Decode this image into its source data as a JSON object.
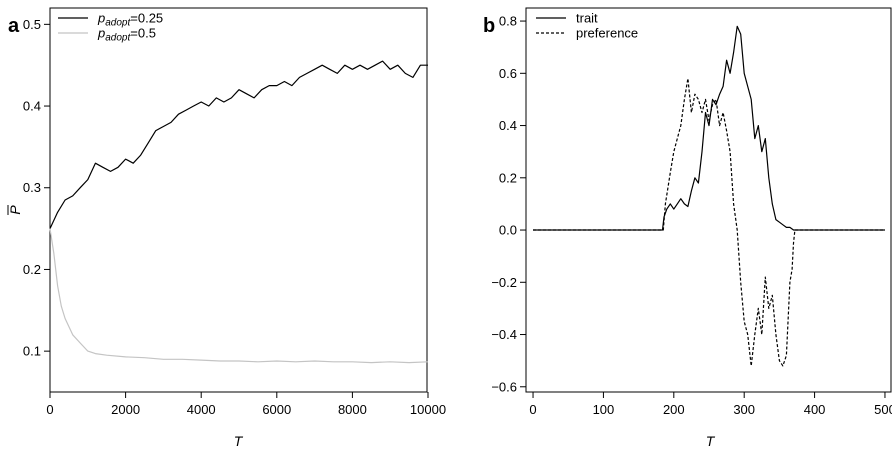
{
  "chart_data": [
    {
      "panel_label": "a",
      "type": "line",
      "xlabel": "T",
      "ylabel": "P",
      "xlim": [
        0,
        10000
      ],
      "ylim": [
        0.05,
        0.52
      ],
      "xticks": [
        0,
        2000,
        4000,
        6000,
        8000,
        10000
      ],
      "xtick_labels": [
        "0",
        "2000",
        "4000",
        "6000",
        "8000",
        "10000"
      ],
      "yticks": [
        0.1,
        0.2,
        0.3,
        0.4,
        0.5
      ],
      "ytick_labels": [
        "0.1",
        "0.2",
        "0.3",
        "0.4",
        "0.5"
      ],
      "legend_position": "top-left",
      "series": [
        {
          "name": "p_adopt=0.25",
          "legend_var": "p",
          "legend_sub": "adopt",
          "legend_value": "=0.25",
          "color": "#000000",
          "dash": "solid",
          "x": [
            0,
            200,
            400,
            600,
            800,
            1000,
            1200,
            1400,
            1600,
            1800,
            2000,
            2200,
            2400,
            2600,
            2800,
            3000,
            3200,
            3400,
            3600,
            3800,
            4000,
            4200,
            4400,
            4600,
            4800,
            5000,
            5200,
            5400,
            5600,
            5800,
            6000,
            6200,
            6400,
            6600,
            6800,
            7000,
            7200,
            7400,
            7600,
            7800,
            8000,
            8200,
            8400,
            8600,
            8800,
            9000,
            9200,
            9400,
            9600,
            9800,
            10000
          ],
          "values": [
            0.25,
            0.27,
            0.285,
            0.29,
            0.3,
            0.31,
            0.33,
            0.325,
            0.32,
            0.325,
            0.335,
            0.33,
            0.34,
            0.355,
            0.37,
            0.375,
            0.38,
            0.39,
            0.395,
            0.4,
            0.405,
            0.4,
            0.41,
            0.405,
            0.41,
            0.42,
            0.415,
            0.41,
            0.42,
            0.425,
            0.425,
            0.43,
            0.425,
            0.435,
            0.44,
            0.445,
            0.45,
            0.445,
            0.44,
            0.45,
            0.445,
            0.45,
            0.445,
            0.45,
            0.455,
            0.445,
            0.45,
            0.44,
            0.435,
            0.45,
            0.45
          ]
        },
        {
          "name": "p_adopt=0.5",
          "legend_var": "p",
          "legend_sub": "adopt",
          "legend_value": "=0.5",
          "color": "#c4c4c4",
          "dash": "solid",
          "x": [
            0,
            100,
            200,
            300,
            400,
            500,
            600,
            800,
            1000,
            1200,
            1500,
            2000,
            2500,
            3000,
            3500,
            4000,
            4500,
            5000,
            5500,
            6000,
            6500,
            7000,
            7500,
            8000,
            8500,
            9000,
            9500,
            10000
          ],
          "values": [
            0.25,
            0.22,
            0.18,
            0.155,
            0.14,
            0.13,
            0.12,
            0.11,
            0.1,
            0.097,
            0.095,
            0.093,
            0.092,
            0.09,
            0.09,
            0.089,
            0.088,
            0.088,
            0.087,
            0.088,
            0.087,
            0.088,
            0.087,
            0.087,
            0.086,
            0.087,
            0.086,
            0.087
          ]
        }
      ]
    },
    {
      "panel_label": "b",
      "type": "line",
      "xlabel": "T",
      "ylabel": "",
      "xlim": [
        -10,
        510
      ],
      "ylim": [
        -0.62,
        0.85
      ],
      "xticks": [
        0,
        100,
        200,
        300,
        400,
        500
      ],
      "xtick_labels": [
        "0",
        "100",
        "200",
        "300",
        "400",
        "500"
      ],
      "yticks": [
        -0.6,
        -0.4,
        -0.2,
        0.0,
        0.2,
        0.4,
        0.6,
        0.8
      ],
      "ytick_labels": [
        "−0.6",
        "−0.4",
        "−0.2",
        "0.0",
        "0.2",
        "0.4",
        "0.6",
        "0.8"
      ],
      "legend_position": "top-left",
      "series": [
        {
          "name": "trait",
          "color": "#000000",
          "dash": "solid",
          "x": [
            0,
            184,
            186,
            190,
            195,
            200,
            205,
            210,
            215,
            220,
            225,
            230,
            235,
            240,
            245,
            250,
            255,
            260,
            265,
            270,
            275,
            280,
            285,
            290,
            295,
            300,
            305,
            310,
            315,
            320,
            325,
            330,
            335,
            340,
            345,
            350,
            355,
            360,
            365,
            370,
            500
          ],
          "values": [
            0,
            0,
            0.05,
            0.08,
            0.1,
            0.08,
            0.1,
            0.12,
            0.1,
            0.09,
            0.15,
            0.2,
            0.18,
            0.3,
            0.45,
            0.4,
            0.5,
            0.48,
            0.52,
            0.55,
            0.65,
            0.6,
            0.68,
            0.78,
            0.75,
            0.6,
            0.55,
            0.5,
            0.35,
            0.4,
            0.3,
            0.35,
            0.2,
            0.1,
            0.04,
            0.03,
            0.02,
            0.01,
            0.01,
            0,
            0
          ]
        },
        {
          "name": "preference",
          "color": "#000000",
          "dash": "dashed",
          "x": [
            0,
            185,
            188,
            195,
            200,
            205,
            210,
            215,
            220,
            225,
            230,
            235,
            240,
            245,
            250,
            255,
            260,
            265,
            270,
            275,
            280,
            285,
            290,
            295,
            300,
            305,
            310,
            315,
            320,
            325,
            330,
            335,
            340,
            345,
            350,
            355,
            360,
            365,
            368,
            370,
            372,
            500
          ],
          "values": [
            0,
            0,
            0.1,
            0.22,
            0.3,
            0.35,
            0.4,
            0.5,
            0.58,
            0.45,
            0.52,
            0.5,
            0.45,
            0.5,
            0.42,
            0.48,
            0.5,
            0.4,
            0.45,
            0.38,
            0.3,
            0.1,
            0.0,
            -0.2,
            -0.35,
            -0.4,
            -0.52,
            -0.4,
            -0.3,
            -0.4,
            -0.18,
            -0.3,
            -0.25,
            -0.4,
            -0.5,
            -0.52,
            -0.48,
            -0.2,
            -0.15,
            -0.05,
            0,
            0
          ]
        }
      ]
    }
  ]
}
